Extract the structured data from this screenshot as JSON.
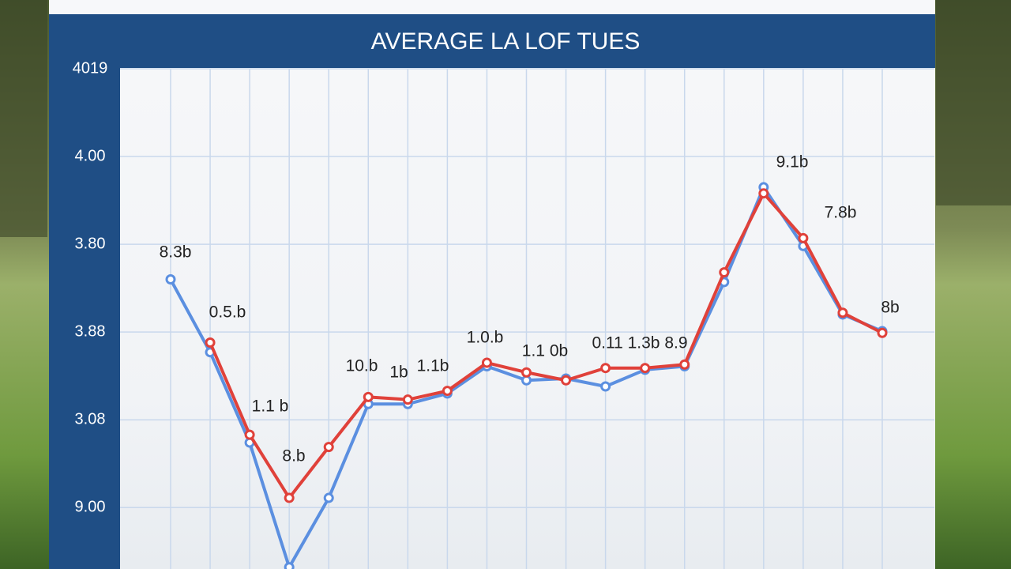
{
  "chart_data": {
    "type": "line",
    "title": "AVERAGE LA LOF TUES",
    "categories": [
      null,
      null,
      null,
      null,
      null,
      null,
      null,
      null,
      null,
      null,
      null,
      null,
      null,
      null,
      null,
      null,
      null,
      null,
      null
    ],
    "series": [
      {
        "color": "#5b8fe0",
        "values": [
          2.6,
          1.77,
          0.74,
          -0.68,
          0.11,
          1.18,
          1.18,
          1.3,
          1.61,
          1.45,
          1.47,
          1.38,
          1.57,
          1.61,
          2.57,
          3.65,
          2.98,
          2.2,
          2.01
        ]
      },
      {
        "color": "#e0413a",
        "values": [
          null,
          1.88,
          0.83,
          0.11,
          0.69,
          1.26,
          1.23,
          1.33,
          1.65,
          1.54,
          1.45,
          1.59,
          1.59,
          1.63,
          2.68,
          3.58,
          3.07,
          2.22,
          1.99
        ]
      }
    ],
    "ylim": [
      -0.7,
      5
    ],
    "yticks": [
      {
        "value": 0,
        "label": "9.00"
      },
      {
        "value": 1,
        "label": "3.08"
      },
      {
        "value": 2,
        "label": "3.88"
      },
      {
        "value": 3,
        "label": "3.80"
      },
      {
        "value": 4,
        "label": "4.00"
      },
      {
        "value": 5,
        "label": "4019"
      }
    ],
    "grid": true,
    "annotations": [
      "8.3b",
      "0.5.b",
      "1.1 b",
      "8.b",
      "10.b",
      "1b",
      "1.1b",
      "1.0.b",
      "1.1 0b",
      "0.11 1.3b 8.9",
      "9.1b",
      "7.8b",
      "8b"
    ]
  }
}
